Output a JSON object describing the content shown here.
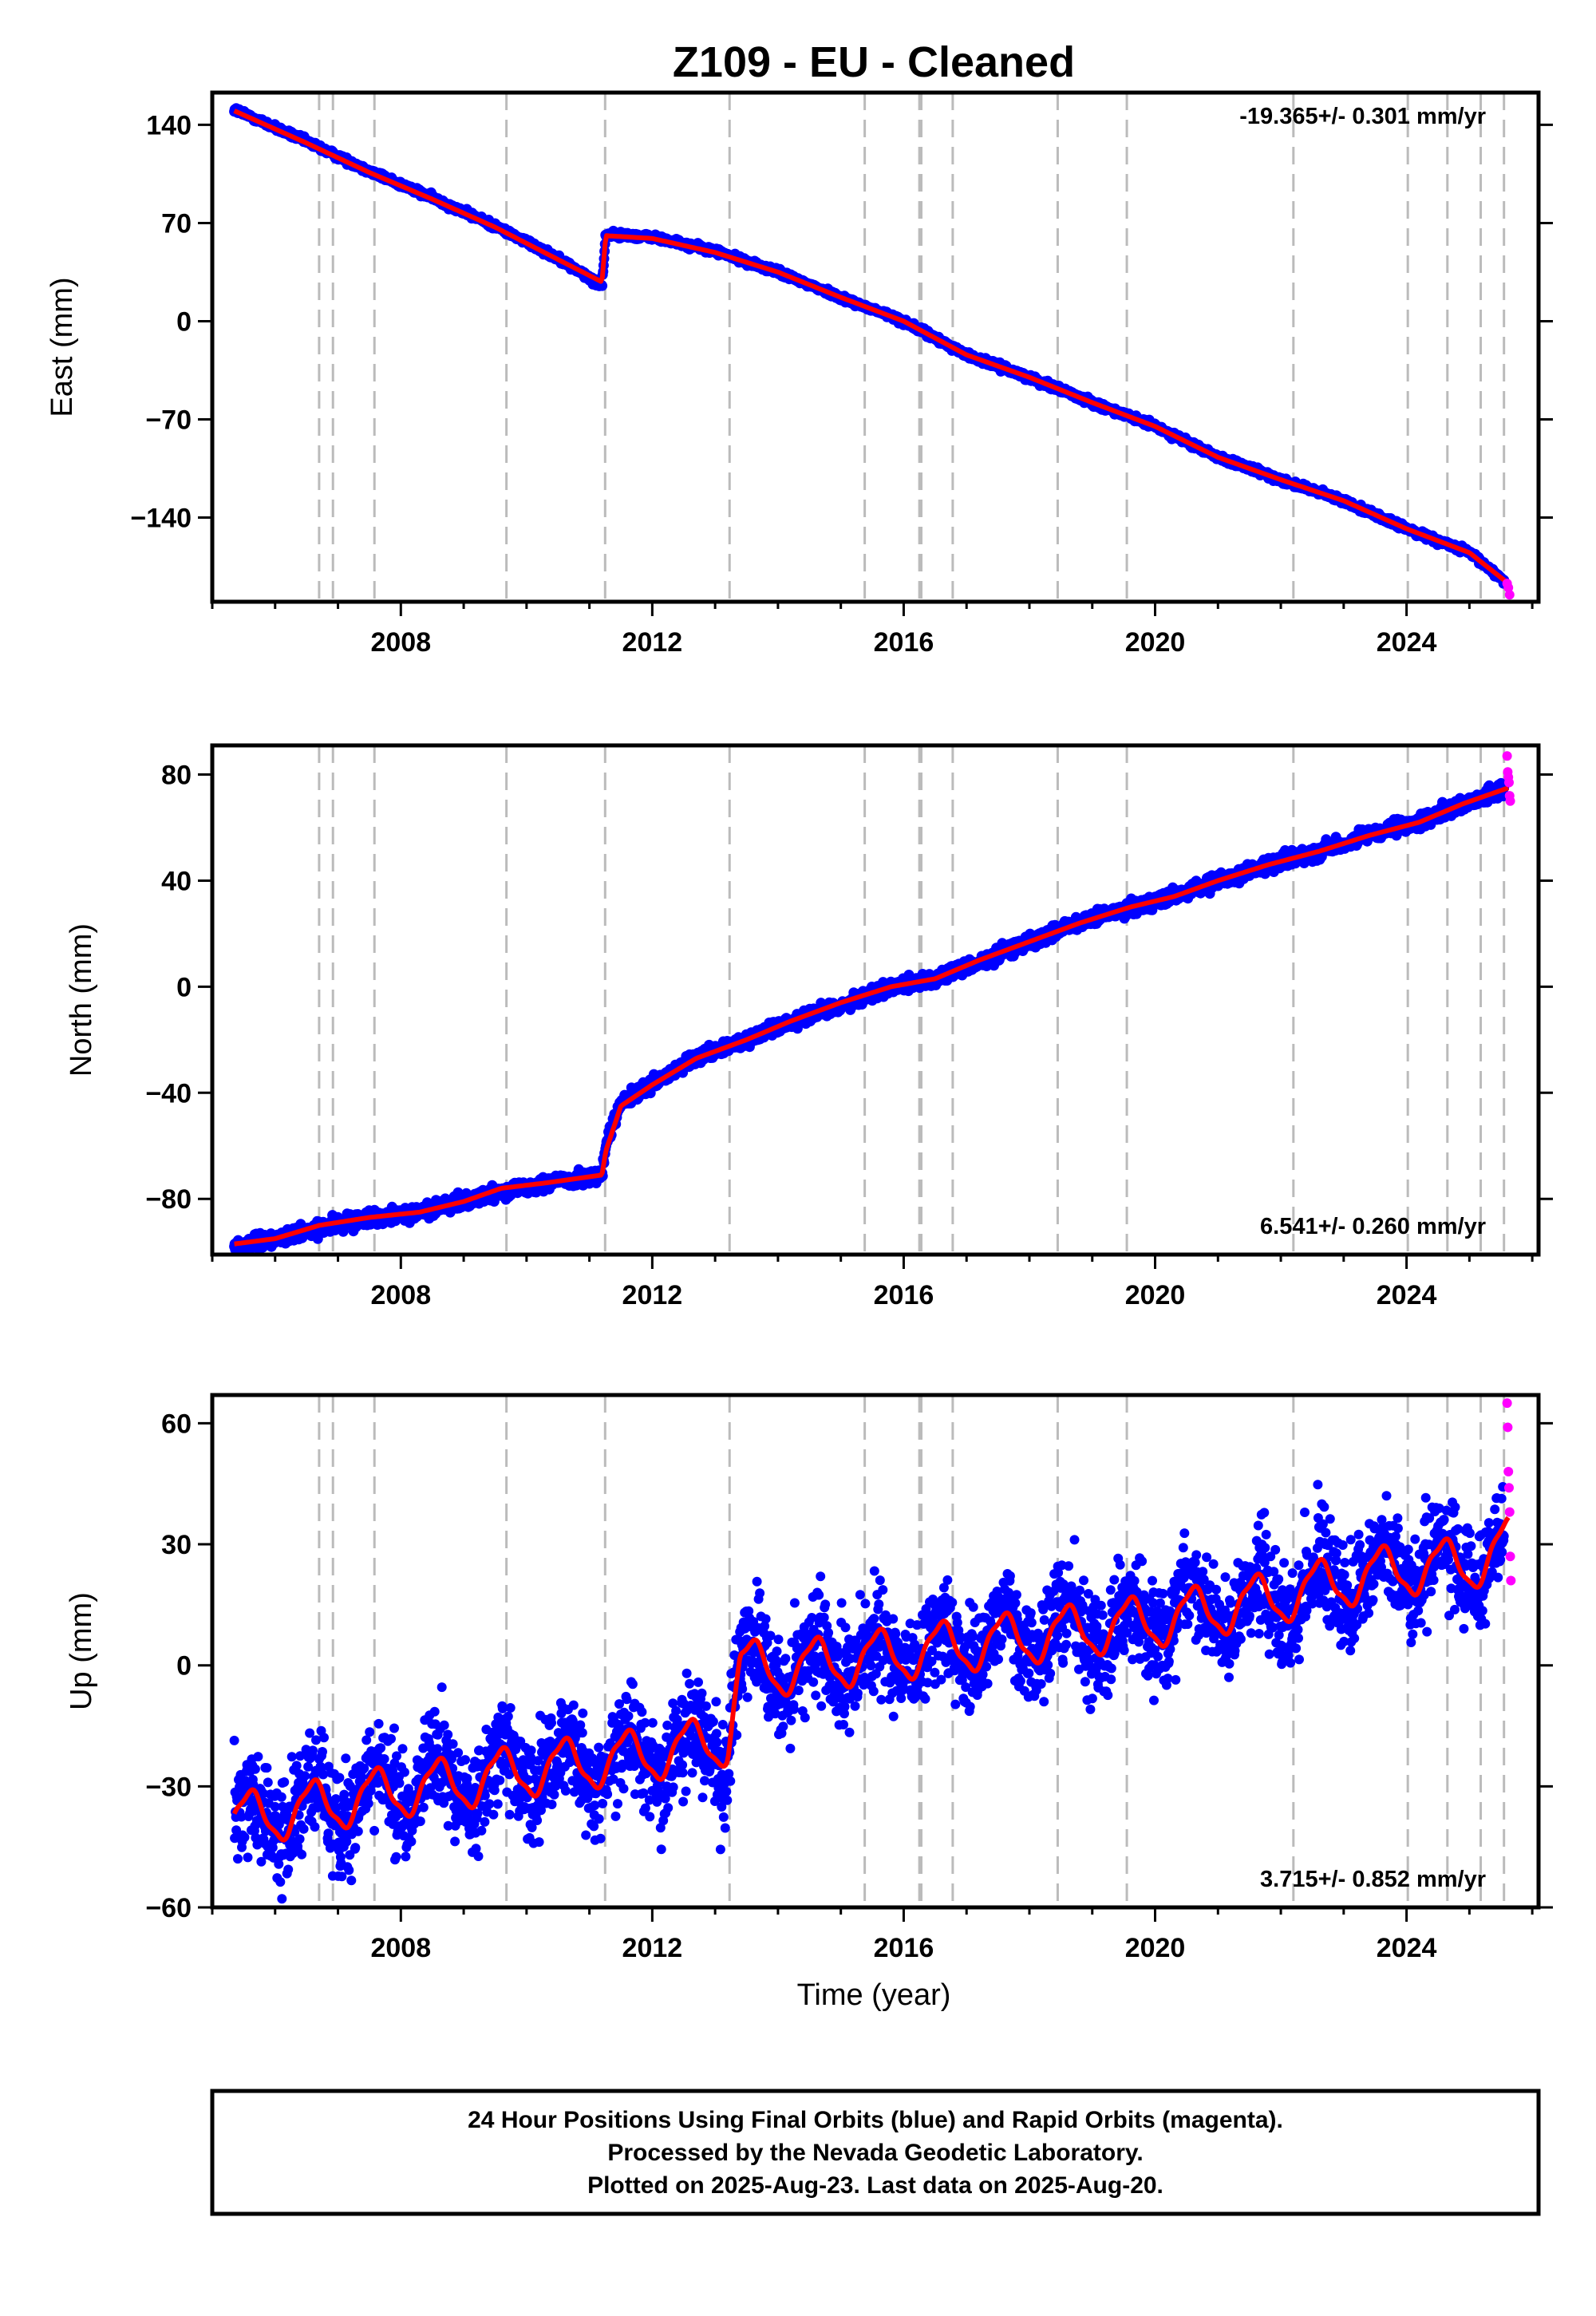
{
  "chart_data": {
    "type": "scatter",
    "title": "Z109  - EU - Cleaned",
    "xlabel": "Time (year)",
    "xlim": [
      2005.0,
      2026.1
    ],
    "x_ticks": [
      2008,
      2012,
      2016,
      2020,
      2024
    ],
    "x_tick_labels": [
      "2008",
      "2012",
      "2016",
      "2020",
      "2024"
    ],
    "event_lines_x": [
      2006.7,
      2006.92,
      2007.58,
      2009.68,
      2011.25,
      2013.23,
      2015.38,
      2016.25,
      2016.28,
      2016.78,
      2018.45,
      2019.55,
      2022.2,
      2024.02,
      2024.65,
      2025.18,
      2025.55
    ],
    "legend_note": [
      "24 Hour Positions Using Final Orbits (blue) and Rapid Orbits (magenta).",
      "Processed by the Nevada Geodetic Laboratory.",
      "Plotted on 2025-Aug-23. Last data on 2025-Aug-20."
    ],
    "colors": {
      "final_orbits": "#0000ff",
      "rapid_orbits": "#ff00ff",
      "model": "#ff0000",
      "event_lines": "#bbbbbb"
    },
    "panels": [
      {
        "ylabel": "East (mm)",
        "ylim": [
          -200,
          163
        ],
        "y_ticks": [
          140,
          70,
          0,
          -70,
          -140
        ],
        "y_tick_labels": [
          "140",
          "70",
          "0",
          "−70",
          "−140"
        ],
        "rate_label": "-19.365+/- 0.301 mm/yr",
        "rate_position": "top-right",
        "series": [
          {
            "name": "Final Orbits",
            "color": "#0000ff",
            "scatter": 2.0,
            "x": [
              2005.35,
              2006.5,
              2007.5,
              2008.5,
              2009.5,
              2010.5,
              2011.2,
              2011.26,
              2012.0,
              2013.0,
              2014.0,
              2015.0,
              2016.0,
              2017.0,
              2018.0,
              2019.0,
              2020.0,
              2021.0,
              2022.0,
              2023.0,
              2024.0,
              2025.0,
              2025.55
            ],
            "y": [
              151,
              128,
              107,
              88,
              68,
              45,
              25,
              62,
              60,
              50,
              35,
              17,
              0,
              -24,
              -40,
              -58,
              -75,
              -97,
              -113,
              -128,
              -148,
              -165,
              -185
            ]
          },
          {
            "name": "Rapid Orbits",
            "color": "#ff00ff",
            "x": [
              2025.6,
              2025.62,
              2025.64
            ],
            "y": [
              -187,
              -190,
              -195
            ]
          }
        ],
        "model": {
          "color": "#ff0000",
          "x": [
            2005.35,
            2006.5,
            2007.5,
            2008.5,
            2009.5,
            2010.5,
            2011.2,
            2011.26,
            2012.0,
            2013.0,
            2014.0,
            2015.0,
            2016.0,
            2017.0,
            2018.0,
            2019.0,
            2020.0,
            2021.0,
            2022.0,
            2023.0,
            2024.0,
            2025.0,
            2025.62
          ],
          "y": [
            150,
            127,
            106,
            87,
            67,
            44,
            28,
            61,
            59,
            49,
            35,
            17,
            0,
            -24,
            -40,
            -58,
            -75,
            -97,
            -113,
            -128,
            -148,
            -165,
            -187
          ]
        }
      },
      {
        "ylabel": "North (mm)",
        "ylim": [
          -101,
          91
        ],
        "y_ticks": [
          80,
          40,
          0,
          -40,
          -80
        ],
        "y_tick_labels": [
          "80",
          "40",
          "0",
          "−40",
          "−80"
        ],
        "rate_label": "6.541+/- 0.260 mm/yr",
        "rate_position": "bottom-right",
        "series": [
          {
            "name": "Final Orbits",
            "color": "#0000ff",
            "scatter": 2.5,
            "x": [
              2005.35,
              2006.0,
              2006.7,
              2007.5,
              2008.3,
              2009.0,
              2009.6,
              2010.3,
              2011.2,
              2011.26,
              2011.5,
              2012.0,
              2012.7,
              2013.5,
              2014.2,
              2015.0,
              2015.8,
              2016.5,
              2017.2,
              2018.0,
              2018.8,
              2019.6,
              2020.3,
              2021.0,
              2021.8,
              2022.6,
              2023.4,
              2024.2,
              2024.9,
              2025.55
            ],
            "y": [
              -98,
              -95,
              -91,
              -87,
              -85,
              -81,
              -77,
              -74,
              -71,
              -60,
              -44,
              -37,
              -27,
              -20,
              -13,
              -7,
              0,
              3,
              9,
              17,
              24,
              30,
              34,
              40,
              46,
              51,
              57,
              62,
              69,
              74
            ]
          },
          {
            "name": "Rapid Orbits",
            "color": "#ff00ff",
            "x": [
              2025.6,
              2025.61,
              2025.62,
              2025.63,
              2025.64,
              2025.65
            ],
            "y": [
              87,
              81,
              79,
              77,
              72,
              70
            ]
          }
        ],
        "model": {
          "color": "#ff0000",
          "x": [
            2005.35,
            2006.0,
            2006.7,
            2007.5,
            2008.3,
            2009.0,
            2009.6,
            2010.3,
            2011.2,
            2011.26,
            2011.5,
            2012.0,
            2012.7,
            2013.5,
            2014.2,
            2015.0,
            2015.8,
            2016.5,
            2017.2,
            2018.0,
            2018.8,
            2019.6,
            2020.3,
            2021.0,
            2021.8,
            2022.6,
            2023.4,
            2024.2,
            2024.9,
            2025.62
          ],
          "y": [
            -97,
            -95,
            -90,
            -87,
            -85,
            -81,
            -76,
            -74,
            -71,
            -62,
            -45,
            -37,
            -27,
            -20,
            -13,
            -6,
            0,
            3,
            10,
            17,
            24,
            30,
            34,
            40,
            46,
            51,
            57,
            62,
            69,
            75
          ]
        }
      },
      {
        "ylabel": "Up (mm)",
        "ylim": [
          -60,
          67
        ],
        "y_ticks": [
          60,
          30,
          0,
          -30,
          -60
        ],
        "y_tick_labels": [
          "60",
          "30",
          "0",
          "−30",
          "−60"
        ],
        "rate_label": "3.715+/- 0.852 mm/yr",
        "rate_position": "bottom-right",
        "series": [
          {
            "name": "Final Orbits",
            "color": "#0000ff",
            "scatter": 7.0,
            "x": [
              2005.35,
              2006.0,
              2007.0,
              2008.0,
              2009.0,
              2010.0,
              2011.0,
              2012.0,
              2013.0,
              2013.2,
              2013.4,
              2014.0,
              2015.0,
              2016.0,
              2017.0,
              2018.0,
              2019.0,
              2020.0,
              2021.0,
              2022.0,
              2023.0,
              2024.0,
              2025.0,
              2025.55
            ],
            "y": [
              -38,
              -37,
              -34,
              -31,
              -29,
              -26,
              -24,
              -22,
              -19,
              -18,
              0,
              -1,
              1,
              3,
              5,
              7,
              9,
              11,
              14,
              17,
              21,
              24,
              27,
              30
            ]
          },
          {
            "name": "Rapid Orbits",
            "color": "#ff00ff",
            "x": [
              2025.6,
              2025.61,
              2025.62,
              2025.63,
              2025.64,
              2025.65,
              2025.66
            ],
            "y": [
              65,
              59,
              48,
              44,
              38,
              27,
              21
            ]
          }
        ],
        "model": {
          "color": "#ff0000",
          "seasonal_amplitude": 6.5,
          "x": [
            2005.35,
            2006.0,
            2007.0,
            2008.0,
            2009.0,
            2010.0,
            2011.0,
            2012.0,
            2013.0,
            2013.2,
            2013.4,
            2014.0,
            2015.0,
            2016.0,
            2017.0,
            2018.0,
            2019.0,
            2020.0,
            2021.0,
            2022.0,
            2023.0,
            2024.0,
            2025.0,
            2025.62
          ],
          "y": [
            -38,
            -37,
            -34,
            -31,
            -29,
            -26,
            -24,
            -22,
            -19,
            -18,
            0,
            -1,
            1,
            3,
            5,
            7,
            9,
            11,
            14,
            17,
            21,
            24,
            25,
            30
          ]
        }
      }
    ]
  }
}
